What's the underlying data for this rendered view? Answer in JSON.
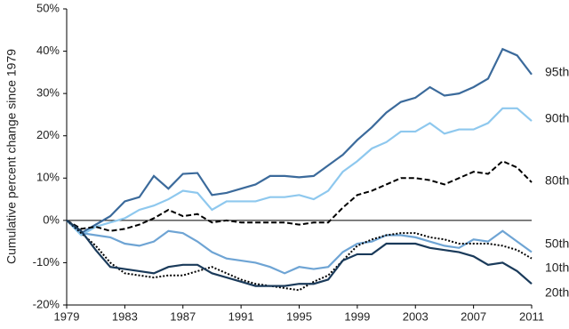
{
  "chart_data": {
    "type": "line",
    "y_label": "Cumulative percent change since 1979",
    "x": [
      1979,
      1980,
      1981,
      1982,
      1983,
      1984,
      1985,
      1986,
      1987,
      1988,
      1989,
      1990,
      1991,
      1992,
      1993,
      1994,
      1995,
      1996,
      1997,
      1998,
      1999,
      2000,
      2001,
      2002,
      2003,
      2004,
      2005,
      2006,
      2007,
      2008,
      2009,
      2010,
      2011
    ],
    "xlim": [
      1979,
      2011
    ],
    "xticks": [
      1979,
      1983,
      1987,
      1991,
      1995,
      1999,
      2003,
      2007,
      2011
    ],
    "ylim": [
      -20,
      50
    ],
    "yticks": [
      {
        "value": -20,
        "label": "-20%"
      },
      {
        "value": -10,
        "label": "-10%"
      },
      {
        "value": 0,
        "label": "0%"
      },
      {
        "value": 10,
        "label": "10%"
      },
      {
        "value": 20,
        "label": "20%"
      },
      {
        "value": 30,
        "label": "30%"
      },
      {
        "value": 40,
        "label": "40%"
      },
      {
        "value": 50,
        "label": "50%"
      }
    ],
    "grid": false,
    "series": [
      {
        "name": "95th",
        "color": "#3b6a9b",
        "dash": "solid",
        "values": [
          0,
          -3,
          -1,
          1,
          4.5,
          5.5,
          10.5,
          7.5,
          11,
          11.2,
          6,
          6.5,
          7.5,
          8.5,
          10.5,
          10.5,
          10.2,
          10.5,
          13,
          15.5,
          19,
          22,
          25.5,
          28,
          29,
          31.5,
          29.5,
          30,
          31.5,
          33.5,
          40.5,
          39,
          34.5
        ]
      },
      {
        "name": "90th",
        "color": "#8ec8ee",
        "dash": "solid",
        "values": [
          0,
          -3.5,
          -1.5,
          -0.5,
          0.5,
          2.5,
          3.5,
          5,
          7,
          6.5,
          2.5,
          4.5,
          4.5,
          4.5,
          5.5,
          5.5,
          6,
          5,
          7,
          11.5,
          14,
          17,
          18.5,
          21,
          21,
          23,
          20.5,
          21.5,
          21.5,
          23,
          26.5,
          26.5,
          23.5
        ]
      },
      {
        "name": "80th",
        "color": "#000000",
        "dash": "dashed",
        "values": [
          0,
          -2,
          -1.5,
          -2.5,
          -2,
          -1,
          0.5,
          2.5,
          1,
          1.5,
          -0.5,
          0,
          -0.5,
          -0.5,
          -0.5,
          -0.5,
          -1,
          -0.5,
          -0.5,
          3,
          6,
          7,
          8.5,
          10,
          10,
          9.5,
          8.5,
          10,
          11.5,
          11,
          14,
          12.5,
          9
        ]
      },
      {
        "name": "50th",
        "color": "#6ea4d4",
        "dash": "solid",
        "values": [
          0,
          -3,
          -3.5,
          -4,
          -5.5,
          -6,
          -5,
          -2.5,
          -3,
          -5,
          -7.5,
          -9,
          -9.5,
          -10,
          -11,
          -12.5,
          -11,
          -11.5,
          -11,
          -7.5,
          -5.5,
          -5,
          -3.5,
          -3.5,
          -4,
          -5,
          -6,
          -6.5,
          -4.5,
          -5,
          -2.5,
          -5,
          -7.5
        ]
      },
      {
        "name": "10th",
        "color": "#000000",
        "dash": "dotted",
        "values": [
          0,
          -3,
          -6,
          -10,
          -12.5,
          -13,
          -13.5,
          -13,
          -13,
          -12,
          -11,
          -12.5,
          -14,
          -15,
          -15.5,
          -16,
          -16.5,
          -14.5,
          -13,
          -9.5,
          -6,
          -4.5,
          -3.5,
          -3,
          -3,
          -4,
          -4.5,
          -5.5,
          -5.5,
          -5.5,
          -6,
          -7,
          -9
        ]
      },
      {
        "name": "20th",
        "color": "#1a3a5a",
        "dash": "solid",
        "values": [
          0,
          -2.5,
          -7,
          -11,
          -11.5,
          -12,
          -12.5,
          -11,
          -10.5,
          -10.5,
          -12.5,
          -13.5,
          -14.5,
          -15.5,
          -15.5,
          -15.5,
          -15,
          -15,
          -14,
          -9.5,
          -8,
          -8,
          -5.5,
          -5.5,
          -5.5,
          -6.5,
          -7,
          -7.5,
          -8.5,
          -10.5,
          -10,
          -12,
          -15
        ]
      }
    ]
  }
}
